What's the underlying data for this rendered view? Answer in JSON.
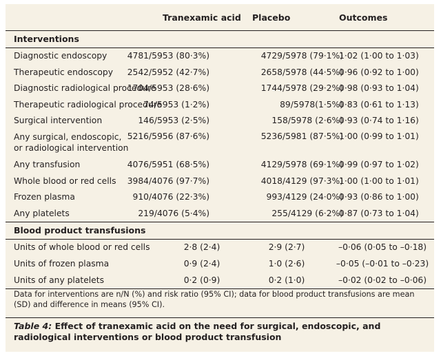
{
  "columns": {
    "tranexamic": "Tranexamic acid",
    "placebo": "Placebo",
    "outcomes": "Outcomes"
  },
  "sections": [
    {
      "title": "Interventions",
      "rows": [
        {
          "label": "Diagnostic endoscopy",
          "tranexamic": "4781/5953 (80·3%)",
          "placebo": "4729/5978 (79·1%)",
          "outcome": "1·02 (1·00 to 1·03)"
        },
        {
          "label": "Therapeutic endoscopy",
          "tranexamic": "2542/5952 (42·7%)",
          "placebo": "2658/5978 (44·5%)",
          "outcome": "0·96 (0·92 to 1·00)"
        },
        {
          "label": "Diagnostic radiological procedure",
          "tranexamic": "1704/5953 (28·6%)",
          "placebo": "1744/5978 (29·2%)",
          "outcome": "0·98 (0·93 to 1·04)"
        },
        {
          "label": "Therapeutic radiological procedure",
          "tranexamic": "74/5953 (1·2%)",
          "placebo": "89/5978(1·5%)",
          "outcome": "0·83 (0·61 to 1·13)"
        },
        {
          "label": "Surgical intervention",
          "tranexamic": "146/5953 (2·5%)",
          "placebo": "158/5978 (2·6%)",
          "outcome": "0·93 (0·74 to 1·16)"
        },
        {
          "label": "Any surgical, endoscopic,",
          "label2": "or radiological intervention",
          "tranexamic": "5216/5956 (87·6%)",
          "placebo": "5236/5981 (87·5%)",
          "outcome": "1·00 (0·99 to 1·01)"
        },
        {
          "label": "Any transfusion",
          "tranexamic": "4076/5951 (68·5%)",
          "placebo": "4129/5978 (69·1%)",
          "outcome": "0·99 (0·97 to 1·02)"
        },
        {
          "label": "Whole blood or red cells",
          "tranexamic": "3984/4076 (97·7%)",
          "placebo": "4018/4129 (97·3%)",
          "outcome": "1·00 (1·00 to 1·01)"
        },
        {
          "label": "Frozen plasma",
          "tranexamic": "910/4076 (22·3%)",
          "placebo": "993/4129 (24·0%)",
          "outcome": "0·93 (0·86 to 1·00)"
        },
        {
          "label": "Any platelets",
          "tranexamic": "219/4076 (5·4%)",
          "placebo": "255/4129 (6·2%)",
          "outcome": "0·87 (0·73 to 1·04)"
        }
      ]
    },
    {
      "title": "Blood product transfusions",
      "rows": [
        {
          "label": "Units of whole blood or red cells",
          "tranexamic": "2·8 (2·4)",
          "placebo": "2·9 (2·7)",
          "outcome": "–0·06 (0·05 to –0·18)"
        },
        {
          "label": "Units of frozen plasma",
          "tranexamic": "0·9 (2·4)",
          "placebo": "1·0 (2·6)",
          "outcome": "–0·05 (–0·01 to –0·23)"
        },
        {
          "label": "Units of any platelets",
          "tranexamic": "0·2 (0·9)",
          "placebo": "0·2 (1·0)",
          "outcome": "–0·02 (0·02 to –0·06)"
        }
      ]
    }
  ],
  "footnote": "Data for interventions are n/N (%) and risk ratio (95% CI); data for blood product transfusions are mean (SD) and difference in means (95% CI).",
  "caption": {
    "label": "Table 4:",
    "text": " Effect of tranexamic acid on the need for surgical, endoscopic, and radiological interventions or blood product transfusion"
  }
}
